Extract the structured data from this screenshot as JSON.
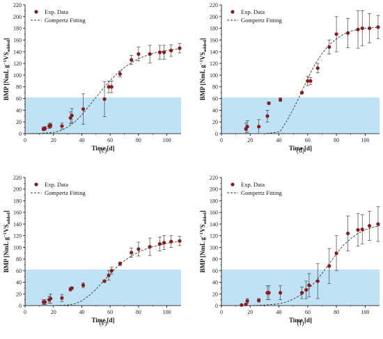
{
  "colors": {
    "marker": "#8b1a1a",
    "fit_line": "#333333",
    "highlight_band": "#bfe3f5",
    "axis": "#000000"
  },
  "chart_data": [
    {
      "panel": "(c)",
      "type": "scatter",
      "xlabel": "Time [d]",
      "ylabel": "BMP [NmL g",
      "ylabel_sup": "−1",
      "ylabel_tail": "VS",
      "ylabel_sub": "added",
      "ylabel_end": "]",
      "xlim": [
        0,
        110
      ],
      "ylim": [
        0,
        220
      ],
      "xticks": [
        0,
        20,
        40,
        60,
        80,
        100
      ],
      "yticks": [
        0,
        20,
        40,
        60,
        80,
        100,
        120,
        140,
        160,
        180,
        200,
        220
      ],
      "band": [
        0,
        62
      ],
      "legend": {
        "placement": "top-left",
        "entries": [
          "Exp. Data",
          "Gompertz Fitting"
        ]
      },
      "series": [
        {
          "name": "Exp. Data",
          "x": [
            13,
            14,
            17,
            18,
            26,
            32,
            33,
            41,
            56,
            59,
            61,
            67,
            75,
            80,
            88,
            95,
            98,
            103,
            109
          ],
          "y": [
            8,
            9,
            13,
            14,
            13,
            27,
            31,
            42,
            59,
            80,
            80,
            102,
            126,
            136,
            136,
            139,
            139,
            142,
            146
          ],
          "err": [
            3,
            3,
            4,
            4,
            5,
            10,
            12,
            26,
            30,
            10,
            10,
            5,
            8,
            12,
            15,
            12,
            12,
            10,
            8
          ]
        },
        {
          "name": "Gompertz Fitting",
          "x": [
            0,
            10,
            20,
            25,
            30,
            35,
            40,
            45,
            50,
            55,
            60,
            65,
            70,
            75,
            80,
            85,
            90,
            95,
            100,
            105,
            110
          ],
          "y": [
            0,
            0.3,
            2,
            5,
            11,
            20,
            32,
            47,
            62,
            77,
            91,
            103,
            113,
            121,
            128,
            133,
            137,
            140,
            142,
            144,
            145
          ]
        }
      ]
    },
    {
      "panel": "(d)",
      "type": "scatter",
      "xlabel": "Time [d]",
      "ylabel": "BMP [NmL g",
      "ylabel_sup": "−1",
      "ylabel_tail": "VS",
      "ylabel_sub": "added",
      "ylabel_end": "]",
      "xlim": [
        0,
        110
      ],
      "ylim": [
        0,
        220
      ],
      "xticks": [
        0,
        20,
        40,
        60,
        80,
        100
      ],
      "yticks": [
        0,
        20,
        40,
        60,
        80,
        100,
        120,
        140,
        160,
        180,
        200,
        220
      ],
      "band": [
        0,
        62
      ],
      "legend": {
        "placement": "top-left",
        "entries": [
          "Exp. Data",
          "Gompertz Fitting"
        ]
      },
      "series": [
        {
          "name": "Exp. Data",
          "x": [
            17,
            18,
            26,
            32,
            33,
            41,
            56,
            60,
            62,
            67,
            75,
            80,
            88,
            95,
            98,
            103,
            109
          ],
          "y": [
            8,
            12,
            12,
            30,
            52,
            58,
            70,
            90,
            90,
            112,
            148,
            170,
            172,
            178,
            180,
            180,
            182
          ],
          "err": [
            10,
            10,
            12,
            10,
            2,
            3,
            2,
            8,
            6,
            8,
            12,
            30,
            25,
            32,
            30,
            25,
            20
          ]
        },
        {
          "name": "Gompertz Fitting",
          "x": [
            0,
            20,
            30,
            38,
            41,
            45,
            50,
            55,
            60,
            65,
            70,
            75,
            80,
            85,
            90,
            95,
            100,
            105,
            110
          ],
          "y": [
            0,
            0,
            0,
            2,
            4,
            20,
            42,
            67,
            94,
            118,
            137,
            152,
            162,
            170,
            175,
            178,
            180,
            181,
            182
          ]
        }
      ]
    },
    {
      "panel": "(e)",
      "type": "scatter",
      "xlabel": "Time [d]",
      "ylabel": "BMP [NmL g",
      "ylabel_sup": "−1",
      "ylabel_tail": "VS",
      "ylabel_sub": "added",
      "ylabel_end": "]",
      "xlim": [
        0,
        110
      ],
      "ylim": [
        0,
        220
      ],
      "xticks": [
        0,
        20,
        40,
        60,
        80,
        100
      ],
      "yticks": [
        0,
        20,
        40,
        60,
        80,
        100,
        120,
        140,
        160,
        180,
        200,
        220
      ],
      "band": [
        0,
        62
      ],
      "legend": {
        "placement": "top-left",
        "entries": [
          "Exp. Data",
          "Gompertz Fitting"
        ]
      },
      "series": [
        {
          "name": "Exp. Data",
          "x": [
            13,
            14,
            17,
            18,
            26,
            32,
            33,
            41,
            56,
            59,
            61,
            67,
            75,
            80,
            88,
            95,
            98,
            103,
            109
          ],
          "y": [
            6,
            6,
            10,
            12,
            13,
            28,
            30,
            35,
            42,
            52,
            60,
            72,
            91,
            97,
            101,
            106,
            108,
            110,
            111
          ],
          "err": [
            4,
            4,
            6,
            8,
            6,
            3,
            2,
            4,
            2,
            8,
            6,
            3,
            8,
            12,
            15,
            12,
            12,
            10,
            8
          ]
        },
        {
          "name": "Gompertz Fitting",
          "x": [
            0,
            20,
            30,
            35,
            40,
            45,
            50,
            55,
            60,
            65,
            70,
            75,
            80,
            85,
            90,
            95,
            100,
            105,
            110
          ],
          "y": [
            0,
            0,
            1,
            3,
            8,
            17,
            28,
            41,
            55,
            67,
            77,
            85,
            92,
            97,
            101,
            104,
            107,
            109,
            110
          ]
        }
      ]
    },
    {
      "panel": "(f)",
      "type": "scatter",
      "xlabel": "Time [d]",
      "ylabel": "BMP [NmL g",
      "ylabel_sup": "−1",
      "ylabel_tail": "VS",
      "ylabel_sub": "added",
      "ylabel_end": "]",
      "xlim": [
        0,
        110
      ],
      "ylim": [
        0,
        220
      ],
      "xticks": [
        0,
        20,
        40,
        60,
        80,
        100
      ],
      "yticks": [
        0,
        20,
        40,
        60,
        80,
        100,
        120,
        140,
        160,
        180,
        200,
        220
      ],
      "band": [
        0,
        62
      ],
      "legend": {
        "placement": "top-left",
        "entries": [
          "Exp. Data",
          "Gompertz Fitting"
        ]
      },
      "series": [
        {
          "name": "Exp. Data",
          "x": [
            14,
            17,
            18,
            26,
            32,
            33,
            41,
            56,
            59,
            61,
            67,
            75,
            80,
            88,
            95,
            98,
            103,
            109
          ],
          "y": [
            1,
            2,
            8,
            9,
            22,
            22,
            22,
            22,
            27,
            35,
            42,
            68,
            90,
            124,
            130,
            131,
            137,
            140
          ],
          "err": [
            1,
            2,
            4,
            3,
            12,
            12,
            12,
            10,
            15,
            20,
            30,
            30,
            30,
            30,
            28,
            25,
            25,
            30
          ]
        },
        {
          "name": "Gompertz Fitting",
          "x": [
            0,
            20,
            30,
            40,
            45,
            50,
            55,
            60,
            65,
            70,
            75,
            80,
            85,
            90,
            95,
            100,
            105,
            110
          ],
          "y": [
            0,
            0,
            1,
            3,
            6,
            11,
            18,
            27,
            40,
            55,
            72,
            89,
            104,
            115,
            124,
            130,
            134,
            137
          ]
        }
      ]
    }
  ]
}
